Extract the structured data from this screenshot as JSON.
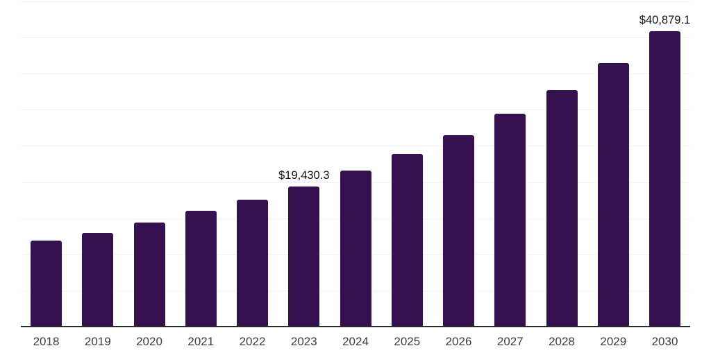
{
  "chart_data": {
    "type": "bar",
    "title": "",
    "xlabel": "",
    "ylabel": "",
    "categories": [
      "2018",
      "2019",
      "2020",
      "2021",
      "2022",
      "2023",
      "2024",
      "2025",
      "2026",
      "2027",
      "2028",
      "2029",
      "2030"
    ],
    "values": [
      11900,
      12950,
      14350,
      16000,
      17600,
      19430.3,
      21550,
      23850,
      26450,
      29500,
      32750,
      36500,
      40879.1
    ],
    "value_labels": [
      {
        "category": "2023",
        "text": "$19,430.3"
      },
      {
        "category": "2030",
        "text": "$40,879.1"
      }
    ],
    "ylim": [
      0,
      45000
    ],
    "gridline_interval": 5000,
    "grid": "horizontal",
    "legend": "none",
    "y_axis_tick_labels_shown": false,
    "colors": {
      "bar": "#351150",
      "axis_line": "#2b2b2b",
      "gridline": "#f2f2f5",
      "tick_label": "#3d3d3d",
      "value_label": "#111111",
      "background": "#ffffff"
    }
  }
}
